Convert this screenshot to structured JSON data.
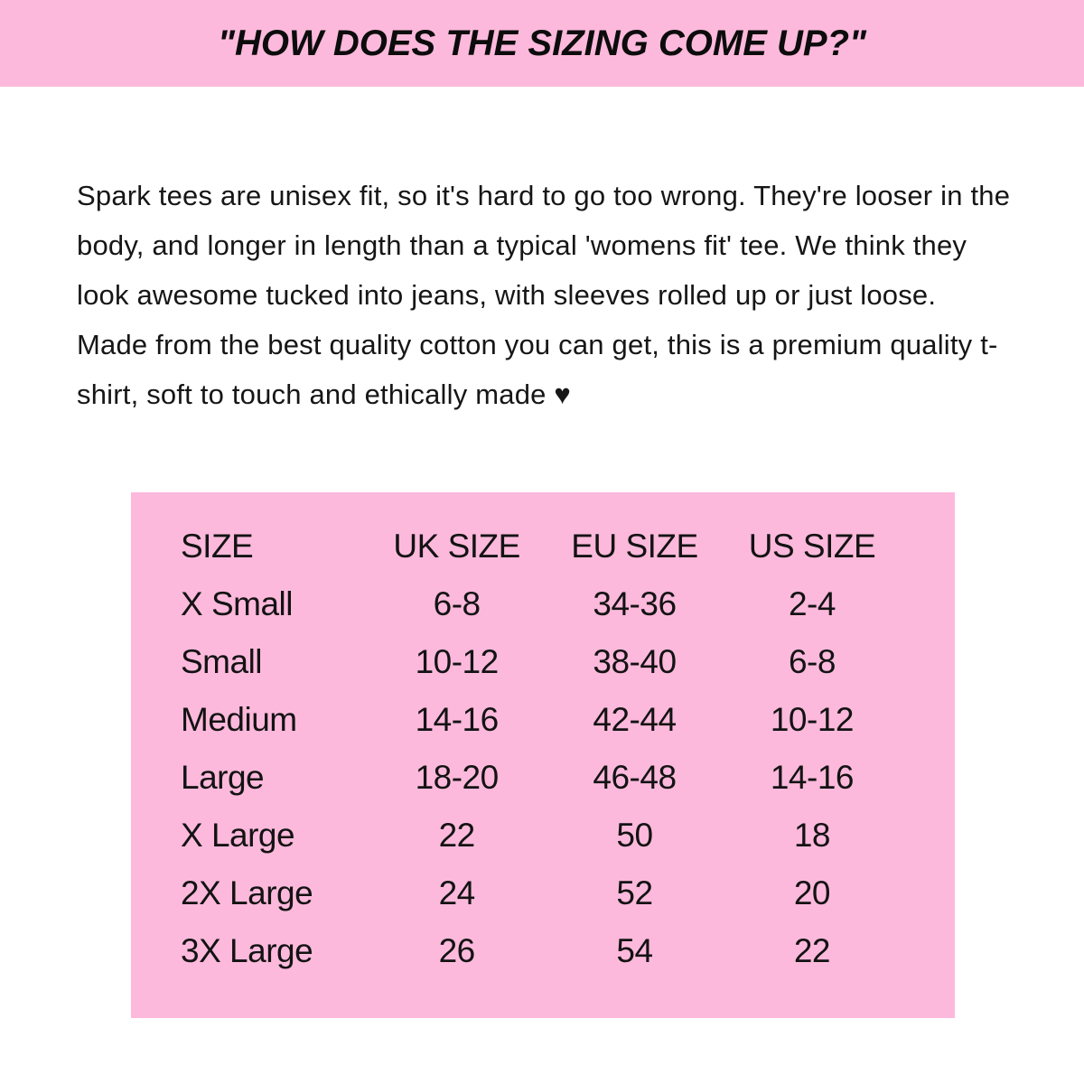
{
  "colors": {
    "pink": "#fdb9dc",
    "text": "#141414"
  },
  "banner": {
    "title": "\"HOW DOES THE SIZING COME UP?\""
  },
  "intro": {
    "text": "Spark tees are unisex fit, so it's hard to go too wrong. They're looser in the body, and longer in length than a typical 'womens fit' tee. We think they look awesome tucked into jeans, with sleeves rolled up or just loose. Made from the best quality cotton you can get, this is a premium quality t-shirt, soft to touch and ethically made ♥"
  },
  "size_table": {
    "headers": [
      "SIZE",
      "UK SIZE",
      "EU SIZE",
      "US SIZE"
    ],
    "rows": [
      [
        "X Small",
        "6-8",
        "34-36",
        "2-4"
      ],
      [
        "Small",
        "10-12",
        "38-40",
        "6-8"
      ],
      [
        "Medium",
        "14-16",
        "42-44",
        "10-12"
      ],
      [
        "Large",
        "18-20",
        "46-48",
        "14-16"
      ],
      [
        "X Large",
        "22",
        "50",
        "18"
      ],
      [
        "2X Large",
        "24",
        "52",
        "20"
      ],
      [
        "3X Large",
        "26",
        "54",
        "22"
      ]
    ]
  }
}
